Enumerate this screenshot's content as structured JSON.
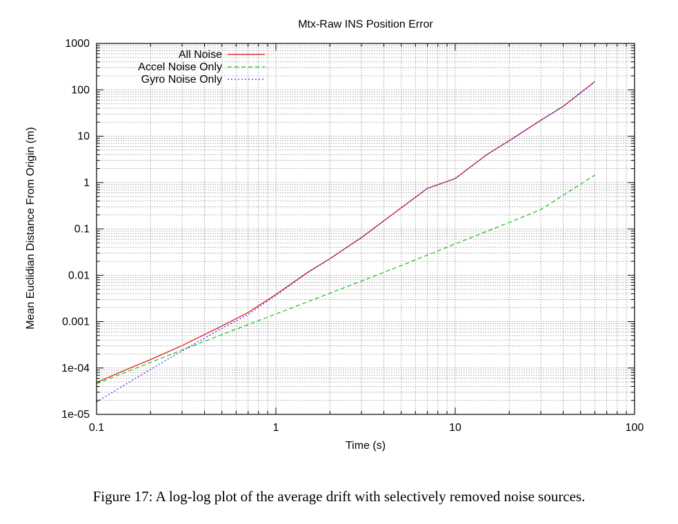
{
  "caption": "Figure 17: A log-log plot of the average drift with selectively removed noise sources.",
  "chart_data": {
    "type": "line",
    "title": "Mtx-Raw INS Position Error",
    "xlabel": "Time (s)",
    "ylabel": "Mean Euclidian Distance From Origin (m)",
    "xscale": "log",
    "yscale": "log",
    "xlim": [
      0.1,
      100
    ],
    "ylim": [
      1e-05,
      1000
    ],
    "grid": true,
    "legend_position": "top-left",
    "xticks": [
      {
        "value": 0.1,
        "label": "0.1"
      },
      {
        "value": 1,
        "label": "1"
      },
      {
        "value": 10,
        "label": "10"
      },
      {
        "value": 100,
        "label": "100"
      }
    ],
    "yticks": [
      {
        "value": 1e-05,
        "label": "1e-05"
      },
      {
        "value": 0.0001,
        "label": "1e-04"
      },
      {
        "value": 0.001,
        "label": "0.001"
      },
      {
        "value": 0.01,
        "label": "0.01"
      },
      {
        "value": 0.1,
        "label": "0.1"
      },
      {
        "value": 1,
        "label": "1"
      },
      {
        "value": 10,
        "label": "10"
      },
      {
        "value": 100,
        "label": "100"
      },
      {
        "value": 1000,
        "label": "1000"
      }
    ],
    "series": [
      {
        "name": "All Noise",
        "color": "#e41a1a",
        "dash": "solid",
        "x": [
          0.1,
          0.15,
          0.2,
          0.3,
          0.5,
          0.7,
          1,
          1.5,
          2,
          3,
          5,
          7,
          10,
          15,
          20,
          30,
          40,
          60
        ],
        "y": [
          4.9e-05,
          9.6e-05,
          0.000152,
          0.000305,
          0.000806,
          0.00158,
          0.00385,
          0.0115,
          0.0228,
          0.065,
          0.285,
          0.75,
          1.22,
          4.0,
          8.0,
          22,
          44,
          150
        ]
      },
      {
        "name": "Accel Noise Only",
        "color": "#22c322",
        "dash": "dashed",
        "x": [
          0.1,
          0.2,
          0.3,
          0.5,
          1,
          2,
          3,
          5,
          10,
          20,
          30,
          60
        ],
        "y": [
          4.6e-05,
          0.000132,
          0.000245,
          0.000525,
          0.00146,
          0.0041,
          0.0075,
          0.0162,
          0.0475,
          0.138,
          0.26,
          1.45
        ]
      },
      {
        "name": "Gyro Noise Only",
        "color": "#2b2be0",
        "dash": "dotted",
        "x": [
          0.1,
          0.15,
          0.2,
          0.3,
          0.5,
          0.7,
          1,
          1.5,
          2,
          3,
          5,
          7,
          10,
          15,
          20,
          30,
          40,
          60
        ],
        "y": [
          1.85e-05,
          4.8e-05,
          9.3e-05,
          0.000235,
          0.00072,
          0.00142,
          0.0037,
          0.0113,
          0.0226,
          0.0648,
          0.284,
          0.75,
          1.21,
          4.0,
          8.0,
          22,
          44,
          148
        ]
      }
    ]
  }
}
